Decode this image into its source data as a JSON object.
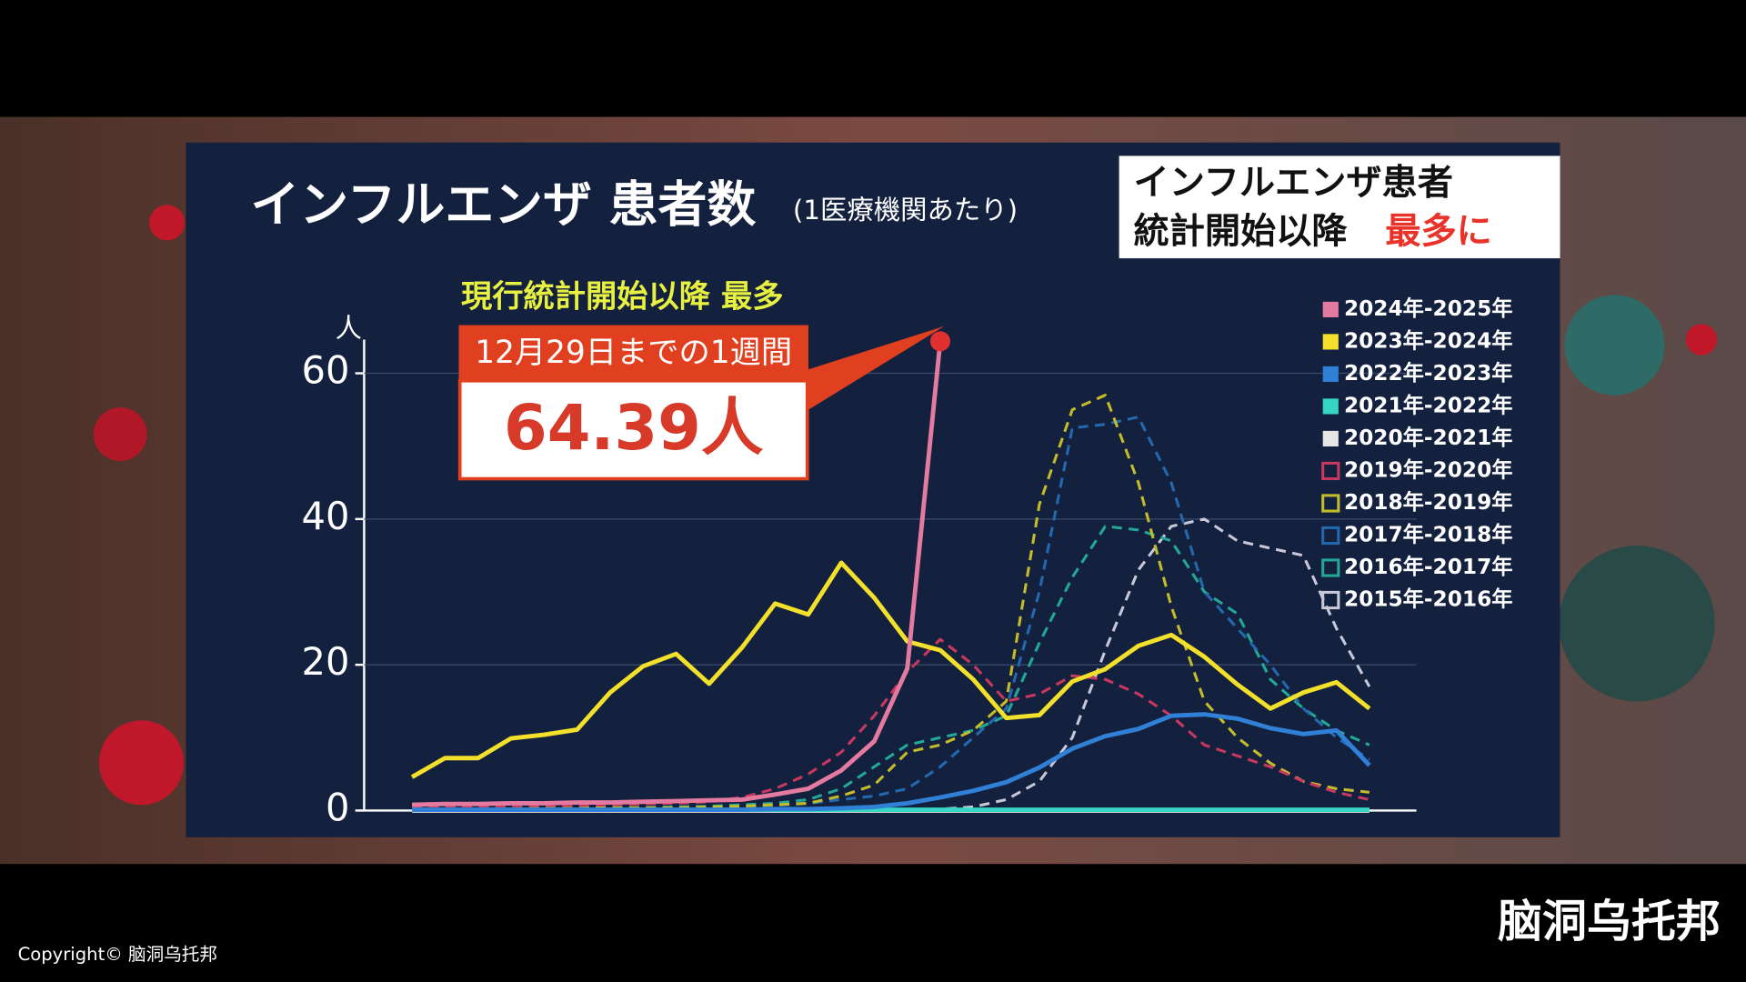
{
  "chart_data": {
    "type": "line",
    "title": "インフルエンザ 患者数",
    "subtitle": "(1医療機関あたり)",
    "y_label": "人",
    "ylim": [
      0,
      66
    ],
    "yticks": [
      0,
      20,
      40,
      60
    ],
    "grid": true,
    "legend": "upper right",
    "series": [
      {
        "name": "2024年-2025年",
        "color": "#e47aa0",
        "dashed": false,
        "values": [
          0.8,
          0.9,
          0.9,
          1.0,
          1.0,
          1.1,
          1.1,
          1.2,
          1.3,
          1.4,
          1.5,
          2.2,
          3.0,
          5.5,
          9.5,
          19.5,
          64.39,
          null,
          null,
          null,
          null,
          null,
          null,
          null,
          null,
          null,
          null,
          null,
          null,
          null
        ]
      },
      {
        "name": "2023年-2024年",
        "color": "#f2e02b",
        "dashed": false,
        "values": [
          4.6,
          7.2,
          7.2,
          9.9,
          10.4,
          11.1,
          16.2,
          19.8,
          21.5,
          17.4,
          22.4,
          28.4,
          26.9,
          34.0,
          29.2,
          23.2,
          22.0,
          18.0,
          12.7,
          13.1,
          17.7,
          19.4,
          22.6,
          24.1,
          21.1,
          17.3,
          14.0,
          16.2,
          17.6,
          14.0
        ]
      },
      {
        "name": "2022年-2023年",
        "color": "#2f80d6",
        "dashed": false,
        "values": [
          0.1,
          0.1,
          0.1,
          0.1,
          0.1,
          0.1,
          0.1,
          0.1,
          0.1,
          0.1,
          0.1,
          0.2,
          0.2,
          0.3,
          0.5,
          1.0,
          1.8,
          2.7,
          3.9,
          5.9,
          8.5,
          10.2,
          11.2,
          13.0,
          13.2,
          12.6,
          11.3,
          10.5,
          11.0,
          6.2
        ]
      },
      {
        "name": "2021年-2022年",
        "color": "#35d6c2",
        "dashed": false,
        "values": [
          0.1,
          0.1,
          0.1,
          0.1,
          0.1,
          0.1,
          0.1,
          0.1,
          0.1,
          0.1,
          0.1,
          0.1,
          0.1,
          0.1,
          0.1,
          0.1,
          0.1,
          0.1,
          0.1,
          0.1,
          0.1,
          0.1,
          0.1,
          0.1,
          0.1,
          0.1,
          0.1,
          0.1,
          0.1,
          0.1
        ]
      },
      {
        "name": "2020年-2021年",
        "color": "#e6e6e6",
        "dashed": false,
        "values": [
          0.0,
          0.0,
          0.0,
          0.0,
          0.0,
          0.0,
          0.0,
          0.0,
          0.0,
          0.0,
          0.0,
          0.0,
          0.0,
          0.0,
          0.0,
          0.0,
          0.0,
          0.0,
          0.0,
          0.0,
          0.0,
          0.0,
          0.0,
          0.0,
          0.0,
          0.0,
          0.0,
          0.0,
          0.0,
          0.0
        ]
      },
      {
        "name": "2019年-2020年",
        "color": "#c8385f",
        "dashed": true,
        "values": [
          0.5,
          0.5,
          0.6,
          0.6,
          0.7,
          0.7,
          0.8,
          0.9,
          1.0,
          1.2,
          1.8,
          3.0,
          5.0,
          8.0,
          13.0,
          19.0,
          23.5,
          20.0,
          15.0,
          16.0,
          18.5,
          18.0,
          16.0,
          13.0,
          9.0,
          7.5,
          6.0,
          4.0,
          2.5,
          1.5
        ]
      },
      {
        "name": "2018年-2019年",
        "color": "#c4bc2a",
        "dashed": true,
        "values": [
          0.3,
          0.3,
          0.3,
          0.3,
          0.3,
          0.3,
          0.4,
          0.4,
          0.4,
          0.5,
          0.6,
          0.8,
          1.0,
          2.0,
          3.5,
          8.0,
          9.0,
          11.0,
          15.0,
          42.0,
          55.0,
          57.0,
          45.0,
          28.0,
          15.0,
          10.0,
          6.5,
          4.0,
          3.0,
          2.5
        ]
      },
      {
        "name": "2017年-2018年",
        "color": "#2468b0",
        "dashed": true,
        "values": [
          0.2,
          0.2,
          0.2,
          0.2,
          0.2,
          0.2,
          0.3,
          0.3,
          0.3,
          0.4,
          0.5,
          0.7,
          1.0,
          1.5,
          2.0,
          3.0,
          6.0,
          10.0,
          14.0,
          30.0,
          52.5,
          53.0,
          54.0,
          45.0,
          30.0,
          25.0,
          20.0,
          14.0,
          10.0,
          7.0
        ]
      },
      {
        "name": "2016年-2017年",
        "color": "#22a896",
        "dashed": true,
        "values": [
          0.2,
          0.2,
          0.2,
          0.3,
          0.3,
          0.3,
          0.4,
          0.4,
          0.5,
          0.6,
          0.8,
          1.0,
          1.5,
          3.0,
          6.0,
          9.0,
          10.0,
          11.0,
          13.0,
          23.0,
          32.0,
          39.0,
          38.5,
          37.0,
          30.0,
          27.0,
          18.0,
          14.0,
          11.0,
          9.0
        ]
      },
      {
        "name": "2015年-2016年",
        "color": "#c8c8d8",
        "dashed": true,
        "values": [
          0.0,
          0.0,
          0.0,
          0.0,
          0.0,
          0.0,
          0.0,
          0.0,
          0.0,
          0.0,
          0.0,
          0.0,
          0.0,
          0.0,
          0.0,
          0.1,
          0.2,
          0.5,
          1.5,
          4.0,
          10.0,
          22.0,
          33.0,
          39.0,
          40.0,
          37.0,
          36.0,
          35.0,
          25.0,
          17.0
        ]
      }
    ],
    "annotation": {
      "headline": "現行統計開始以降 最多",
      "period": "12月29日までの1週間",
      "value_text": "64.39人"
    }
  },
  "badge": {
    "line1": "インフルエンザ患者",
    "line2": "統計開始以降",
    "highlight": "最多に"
  },
  "footer": {
    "channel": "脑洞乌托邦",
    "copyright": "Copyright© 脑洞乌托邦"
  }
}
